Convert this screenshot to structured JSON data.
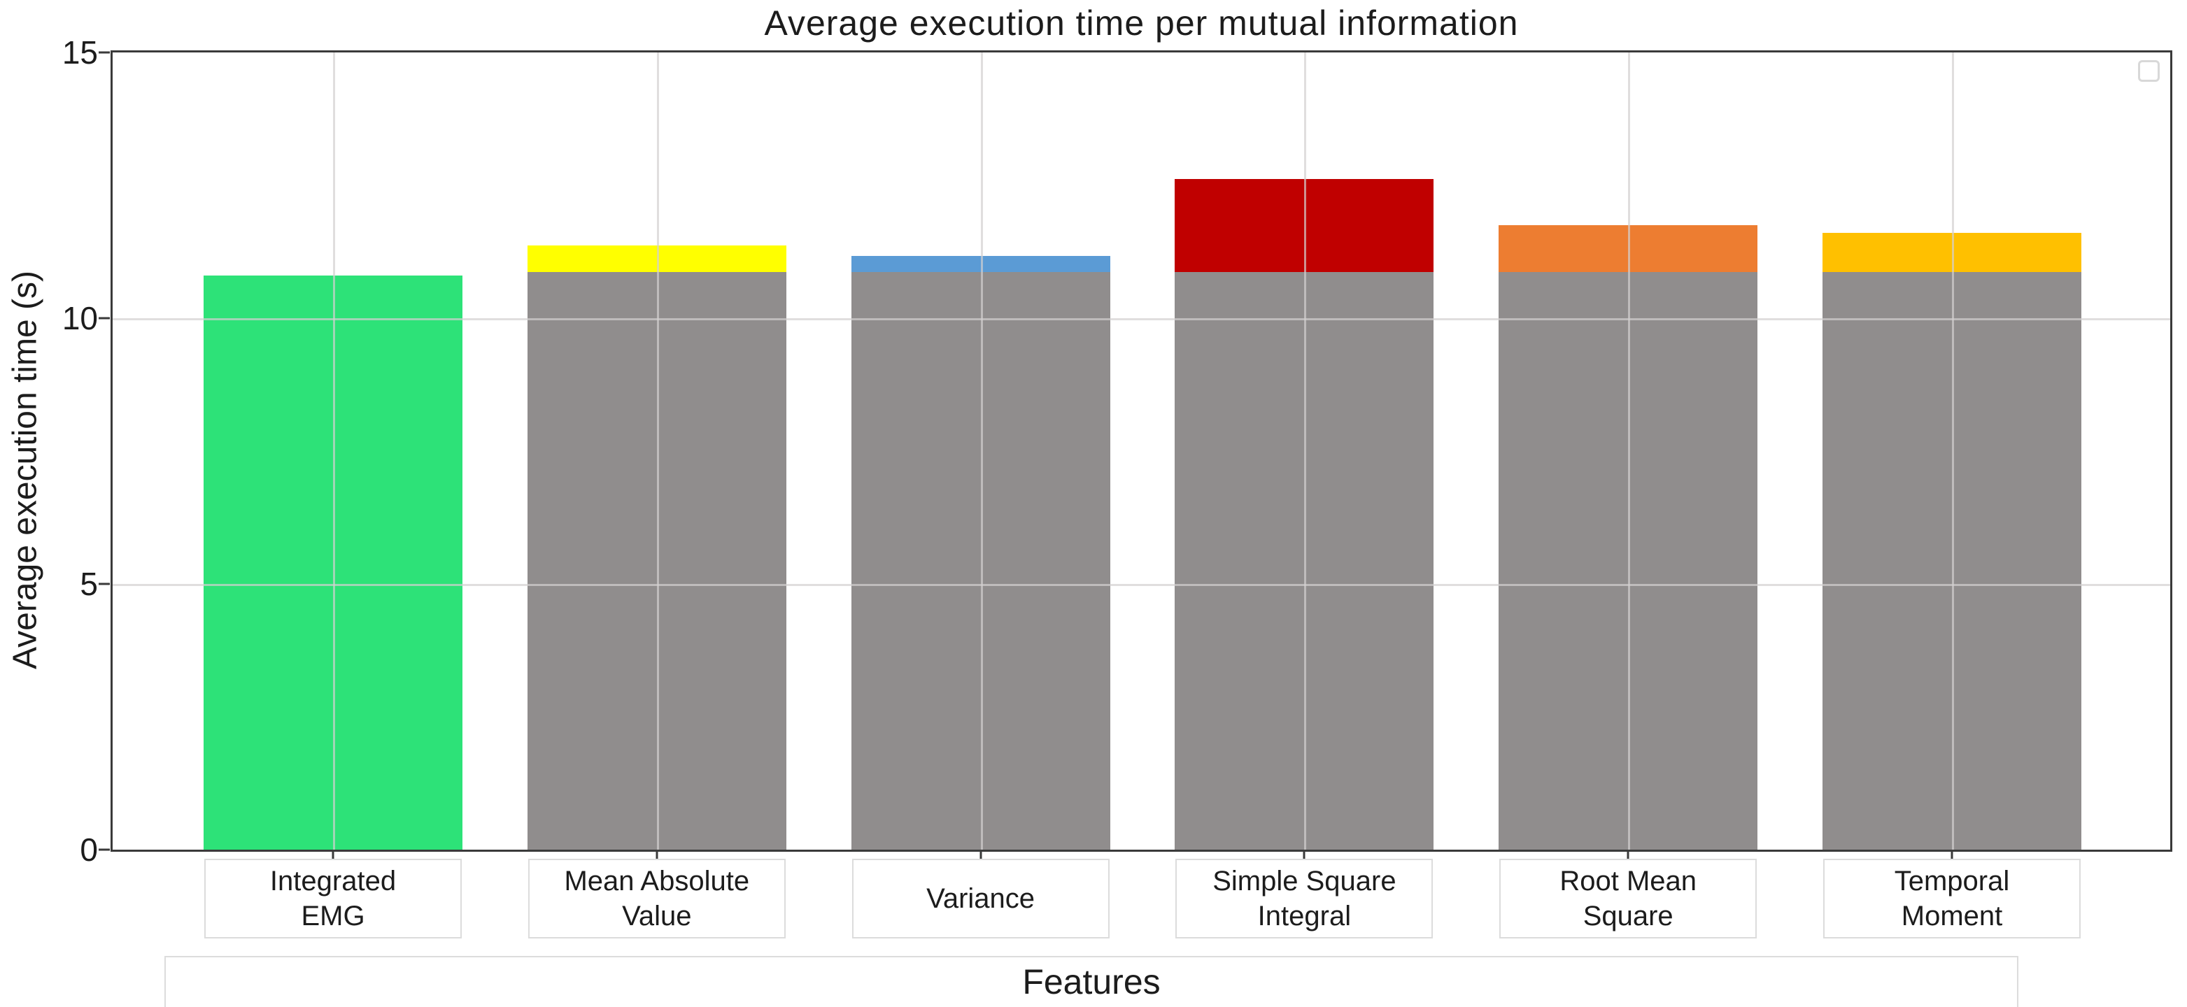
{
  "chart_data": {
    "type": "bar",
    "stacked": true,
    "title": "Average execution time per mutual information",
    "xlabel": "Features",
    "ylabel": "Average execution time (s)",
    "ylim": [
      0,
      15
    ],
    "yticks": [
      0,
      5,
      10,
      15
    ],
    "grid": true,
    "legend_position": "upper right (empty box)",
    "categories": [
      "Integrated EMG",
      "Mean Absolute Value",
      "Variance",
      "Simple Square Integral",
      "Root Mean Square",
      "Temporal Moment"
    ],
    "category_label_lines": [
      [
        "Integrated",
        "EMG"
      ],
      [
        "Mean Absolute",
        "Value"
      ],
      [
        "Variance"
      ],
      [
        "Simple Square",
        "Integral"
      ],
      [
        "Root Mean",
        "Square"
      ],
      [
        "Temporal",
        "Moment"
      ]
    ],
    "bars": [
      {
        "category": "Integrated EMG",
        "total": 10.8,
        "segments": [
          {
            "name": "highlight",
            "value": 10.8,
            "color": "#2de278"
          }
        ]
      },
      {
        "category": "Mean Absolute Value",
        "total": 11.37,
        "segments": [
          {
            "name": "base",
            "value": 10.87,
            "color": "#908d8d"
          },
          {
            "name": "extra",
            "value": 0.5,
            "color": "#ffff00"
          }
        ]
      },
      {
        "category": "Variance",
        "total": 11.17,
        "segments": [
          {
            "name": "base",
            "value": 10.87,
            "color": "#908d8d"
          },
          {
            "name": "extra",
            "value": 0.3,
            "color": "#5b9bd5"
          }
        ]
      },
      {
        "category": "Simple Square Integral",
        "total": 12.62,
        "segments": [
          {
            "name": "base",
            "value": 10.87,
            "color": "#908d8d"
          },
          {
            "name": "extra",
            "value": 1.75,
            "color": "#c00000"
          }
        ]
      },
      {
        "category": "Root Mean Square",
        "total": 11.75,
        "segments": [
          {
            "name": "base",
            "value": 10.87,
            "color": "#908d8d"
          },
          {
            "name": "extra",
            "value": 0.88,
            "color": "#ed7d31"
          }
        ]
      },
      {
        "category": "Temporal Moment",
        "total": 11.6,
        "segments": [
          {
            "name": "base",
            "value": 10.87,
            "color": "#908d8d"
          },
          {
            "name": "extra",
            "value": 0.73,
            "color": "#ffc000"
          }
        ]
      }
    ],
    "colors": {
      "axis": "#3a3a3a",
      "grid": "#d3d0d0",
      "tick_text": "#1c1c1c",
      "label_box_border": "#dcdcdc",
      "legend_border": "#d8d8d8"
    }
  }
}
